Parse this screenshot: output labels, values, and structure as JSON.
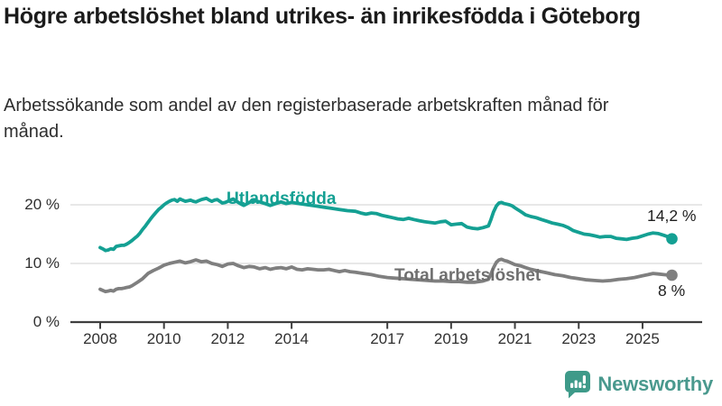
{
  "header": {
    "title": "Högre arbetslöshet bland utrikes- än inrikesfödda i Göteborg",
    "subtitle": "Arbetssökande som andel av den registerbaserade arbetskraften månad för månad."
  },
  "chart_data": {
    "type": "line",
    "title": "Högre arbetslöshet bland utrikes- än inrikesfödda i Göteborg",
    "subtitle": "Arbetssökande som andel av den registerbaserade arbetskraften månad för månad.",
    "unit": "%",
    "legend_position": "inline-labels",
    "x_axis": {
      "ticks": [
        2008,
        2010,
        2012,
        2014,
        2017,
        2019,
        2021,
        2023,
        2025
      ],
      "range": [
        2008,
        2026.3
      ]
    },
    "y_axis": {
      "ticks": [
        0,
        10,
        20
      ],
      "tick_labels": [
        "0 %",
        "10 %",
        "20 %"
      ],
      "range": [
        0,
        22.6
      ],
      "grid": true
    },
    "series": [
      {
        "name": "Utlandsfödda",
        "color": "#14a093",
        "end_value_label": "14,2 %",
        "end_value": 14.2,
        "points": [
          [
            2008.0,
            12.7
          ],
          [
            2008.08,
            12.5
          ],
          [
            2008.17,
            12.2
          ],
          [
            2008.25,
            12.3
          ],
          [
            2008.33,
            12.5
          ],
          [
            2008.42,
            12.4
          ],
          [
            2008.5,
            12.9
          ],
          [
            2008.58,
            13.0
          ],
          [
            2008.67,
            13.1
          ],
          [
            2008.75,
            13.1
          ],
          [
            2008.83,
            13.3
          ],
          [
            2008.92,
            13.6
          ],
          [
            2009.0,
            13.9
          ],
          [
            2009.08,
            14.3
          ],
          [
            2009.17,
            14.7
          ],
          [
            2009.25,
            15.2
          ],
          [
            2009.33,
            15.8
          ],
          [
            2009.42,
            16.4
          ],
          [
            2009.5,
            17.0
          ],
          [
            2009.58,
            17.6
          ],
          [
            2009.67,
            18.2
          ],
          [
            2009.75,
            18.7
          ],
          [
            2009.83,
            19.2
          ],
          [
            2009.92,
            19.6
          ],
          [
            2010.0,
            20.0
          ],
          [
            2010.08,
            20.3
          ],
          [
            2010.17,
            20.6
          ],
          [
            2010.25,
            20.8
          ],
          [
            2010.33,
            20.9
          ],
          [
            2010.42,
            20.6
          ],
          [
            2010.5,
            21.0
          ],
          [
            2010.58,
            20.8
          ],
          [
            2010.67,
            20.6
          ],
          [
            2010.75,
            20.7
          ],
          [
            2010.83,
            20.8
          ],
          [
            2010.92,
            20.6
          ],
          [
            2011.0,
            20.5
          ],
          [
            2011.08,
            20.7
          ],
          [
            2011.17,
            20.9
          ],
          [
            2011.25,
            21.0
          ],
          [
            2011.33,
            21.1
          ],
          [
            2011.42,
            20.8
          ],
          [
            2011.5,
            20.6
          ],
          [
            2011.58,
            20.8
          ],
          [
            2011.67,
            20.9
          ],
          [
            2011.75,
            20.6
          ],
          [
            2011.83,
            20.3
          ],
          [
            2011.92,
            20.4
          ],
          [
            2012.0,
            20.6
          ],
          [
            2012.08,
            20.8
          ],
          [
            2012.17,
            21.0
          ],
          [
            2012.25,
            20.7
          ],
          [
            2012.33,
            20.4
          ],
          [
            2012.42,
            20.1
          ],
          [
            2012.5,
            19.9
          ],
          [
            2012.58,
            20.1
          ],
          [
            2012.67,
            20.4
          ],
          [
            2012.75,
            20.6
          ],
          [
            2012.83,
            20.8
          ],
          [
            2012.92,
            20.6
          ],
          [
            2013.0,
            20.5
          ],
          [
            2013.17,
            20.2
          ],
          [
            2013.33,
            19.9
          ],
          [
            2013.5,
            20.2
          ],
          [
            2013.67,
            20.5
          ],
          [
            2013.83,
            20.2
          ],
          [
            2014.0,
            20.4
          ],
          [
            2014.25,
            20.2
          ],
          [
            2014.5,
            20.0
          ],
          [
            2014.75,
            19.8
          ],
          [
            2015.0,
            19.6
          ],
          [
            2015.25,
            19.4
          ],
          [
            2015.5,
            19.2
          ],
          [
            2015.75,
            19.0
          ],
          [
            2016.0,
            18.9
          ],
          [
            2016.17,
            18.6
          ],
          [
            2016.33,
            18.4
          ],
          [
            2016.5,
            18.6
          ],
          [
            2016.67,
            18.5
          ],
          [
            2016.83,
            18.2
          ],
          [
            2017.0,
            18.0
          ],
          [
            2017.17,
            17.8
          ],
          [
            2017.33,
            17.6
          ],
          [
            2017.5,
            17.5
          ],
          [
            2017.67,
            17.7
          ],
          [
            2017.83,
            17.5
          ],
          [
            2018.0,
            17.3
          ],
          [
            2018.17,
            17.1
          ],
          [
            2018.33,
            17.0
          ],
          [
            2018.5,
            16.9
          ],
          [
            2018.67,
            17.1
          ],
          [
            2018.83,
            17.2
          ],
          [
            2019.0,
            16.6
          ],
          [
            2019.17,
            16.7
          ],
          [
            2019.33,
            16.8
          ],
          [
            2019.5,
            16.2
          ],
          [
            2019.67,
            16.0
          ],
          [
            2019.83,
            15.9
          ],
          [
            2020.0,
            16.1
          ],
          [
            2020.17,
            16.4
          ],
          [
            2020.25,
            17.5
          ],
          [
            2020.33,
            18.8
          ],
          [
            2020.42,
            19.8
          ],
          [
            2020.5,
            20.3
          ],
          [
            2020.58,
            20.4
          ],
          [
            2020.67,
            20.2
          ],
          [
            2020.75,
            20.1
          ],
          [
            2020.83,
            20.0
          ],
          [
            2020.92,
            19.8
          ],
          [
            2021.0,
            19.5
          ],
          [
            2021.08,
            19.2
          ],
          [
            2021.17,
            18.9
          ],
          [
            2021.25,
            18.6
          ],
          [
            2021.33,
            18.3
          ],
          [
            2021.5,
            18.0
          ],
          [
            2021.67,
            17.8
          ],
          [
            2021.83,
            17.5
          ],
          [
            2022.0,
            17.2
          ],
          [
            2022.17,
            16.9
          ],
          [
            2022.33,
            16.7
          ],
          [
            2022.5,
            16.5
          ],
          [
            2022.67,
            16.1
          ],
          [
            2022.83,
            15.6
          ],
          [
            2023.0,
            15.3
          ],
          [
            2023.17,
            15.0
          ],
          [
            2023.33,
            14.9
          ],
          [
            2023.5,
            14.7
          ],
          [
            2023.67,
            14.5
          ],
          [
            2023.83,
            14.6
          ],
          [
            2024.0,
            14.6
          ],
          [
            2024.17,
            14.3
          ],
          [
            2024.33,
            14.2
          ],
          [
            2024.5,
            14.1
          ],
          [
            2024.67,
            14.3
          ],
          [
            2024.83,
            14.4
          ],
          [
            2025.0,
            14.7
          ],
          [
            2025.17,
            15.0
          ],
          [
            2025.33,
            15.2
          ],
          [
            2025.5,
            15.1
          ],
          [
            2025.67,
            14.8
          ],
          [
            2025.83,
            14.5
          ],
          [
            2025.92,
            14.2
          ]
        ]
      },
      {
        "name": "Total arbetslöshet",
        "color": "#7f7f7f",
        "label_color": "#6f6f6f",
        "end_value_label": "8 %",
        "end_value": 8.0,
        "points": [
          [
            2008.0,
            5.6
          ],
          [
            2008.08,
            5.4
          ],
          [
            2008.17,
            5.2
          ],
          [
            2008.25,
            5.3
          ],
          [
            2008.33,
            5.4
          ],
          [
            2008.42,
            5.3
          ],
          [
            2008.5,
            5.6
          ],
          [
            2008.58,
            5.7
          ],
          [
            2008.67,
            5.7
          ],
          [
            2008.75,
            5.8
          ],
          [
            2008.83,
            5.9
          ],
          [
            2008.92,
            6.0
          ],
          [
            2009.0,
            6.2
          ],
          [
            2009.17,
            6.8
          ],
          [
            2009.33,
            7.4
          ],
          [
            2009.5,
            8.3
          ],
          [
            2009.67,
            8.8
          ],
          [
            2009.83,
            9.2
          ],
          [
            2010.0,
            9.7
          ],
          [
            2010.17,
            10.0
          ],
          [
            2010.33,
            10.2
          ],
          [
            2010.5,
            10.4
          ],
          [
            2010.67,
            10.1
          ],
          [
            2010.83,
            10.3
          ],
          [
            2011.0,
            10.6
          ],
          [
            2011.17,
            10.3
          ],
          [
            2011.33,
            10.4
          ],
          [
            2011.5,
            10.0
          ],
          [
            2011.67,
            9.8
          ],
          [
            2011.83,
            9.5
          ],
          [
            2012.0,
            9.9
          ],
          [
            2012.17,
            10.0
          ],
          [
            2012.33,
            9.6
          ],
          [
            2012.5,
            9.3
          ],
          [
            2012.67,
            9.5
          ],
          [
            2012.83,
            9.4
          ],
          [
            2013.0,
            9.1
          ],
          [
            2013.17,
            9.3
          ],
          [
            2013.33,
            9.0
          ],
          [
            2013.5,
            9.2
          ],
          [
            2013.67,
            9.3
          ],
          [
            2013.83,
            9.1
          ],
          [
            2014.0,
            9.4
          ],
          [
            2014.17,
            9.0
          ],
          [
            2014.33,
            8.9
          ],
          [
            2014.5,
            9.1
          ],
          [
            2014.67,
            9.0
          ],
          [
            2014.83,
            8.9
          ],
          [
            2015.0,
            8.9
          ],
          [
            2015.17,
            9.0
          ],
          [
            2015.33,
            8.8
          ],
          [
            2015.5,
            8.6
          ],
          [
            2015.67,
            8.8
          ],
          [
            2015.83,
            8.6
          ],
          [
            2016.0,
            8.5
          ],
          [
            2016.25,
            8.3
          ],
          [
            2016.5,
            8.1
          ],
          [
            2016.75,
            7.8
          ],
          [
            2017.0,
            7.6
          ],
          [
            2017.25,
            7.5
          ],
          [
            2017.5,
            7.4
          ],
          [
            2017.75,
            7.3
          ],
          [
            2018.0,
            7.2
          ],
          [
            2018.25,
            7.1
          ],
          [
            2018.5,
            7.0
          ],
          [
            2018.75,
            7.0
          ],
          [
            2019.0,
            6.9
          ],
          [
            2019.25,
            6.9
          ],
          [
            2019.5,
            6.8
          ],
          [
            2019.75,
            6.8
          ],
          [
            2020.0,
            7.0
          ],
          [
            2020.17,
            7.3
          ],
          [
            2020.25,
            8.2
          ],
          [
            2020.33,
            9.3
          ],
          [
            2020.42,
            10.2
          ],
          [
            2020.5,
            10.6
          ],
          [
            2020.58,
            10.7
          ],
          [
            2020.67,
            10.5
          ],
          [
            2020.75,
            10.4
          ],
          [
            2020.92,
            10.0
          ],
          [
            2021.0,
            9.8
          ],
          [
            2021.17,
            9.6
          ],
          [
            2021.33,
            9.3
          ],
          [
            2021.5,
            9.0
          ],
          [
            2021.67,
            8.8
          ],
          [
            2021.83,
            8.6
          ],
          [
            2022.0,
            8.4
          ],
          [
            2022.25,
            8.1
          ],
          [
            2022.5,
            7.9
          ],
          [
            2022.75,
            7.6
          ],
          [
            2023.0,
            7.4
          ],
          [
            2023.25,
            7.2
          ],
          [
            2023.5,
            7.1
          ],
          [
            2023.75,
            7.0
          ],
          [
            2024.0,
            7.1
          ],
          [
            2024.25,
            7.3
          ],
          [
            2024.5,
            7.4
          ],
          [
            2024.75,
            7.6
          ],
          [
            2025.0,
            7.9
          ],
          [
            2025.17,
            8.1
          ],
          [
            2025.33,
            8.3
          ],
          [
            2025.5,
            8.2
          ],
          [
            2025.67,
            8.1
          ],
          [
            2025.83,
            8.0
          ],
          [
            2025.92,
            8.0
          ]
        ]
      }
    ],
    "colors": {
      "grid": "#d9d9d9",
      "axis": "#3f3f3f",
      "tick_text": "#303030",
      "value_text": "#1f1f1f"
    }
  },
  "footer": {
    "brand": "Newsworthy",
    "brand_color": "#4a998e",
    "icon": "newsworthy-speech-bubble-chart-icon",
    "icon_color": "#3e9a89"
  }
}
